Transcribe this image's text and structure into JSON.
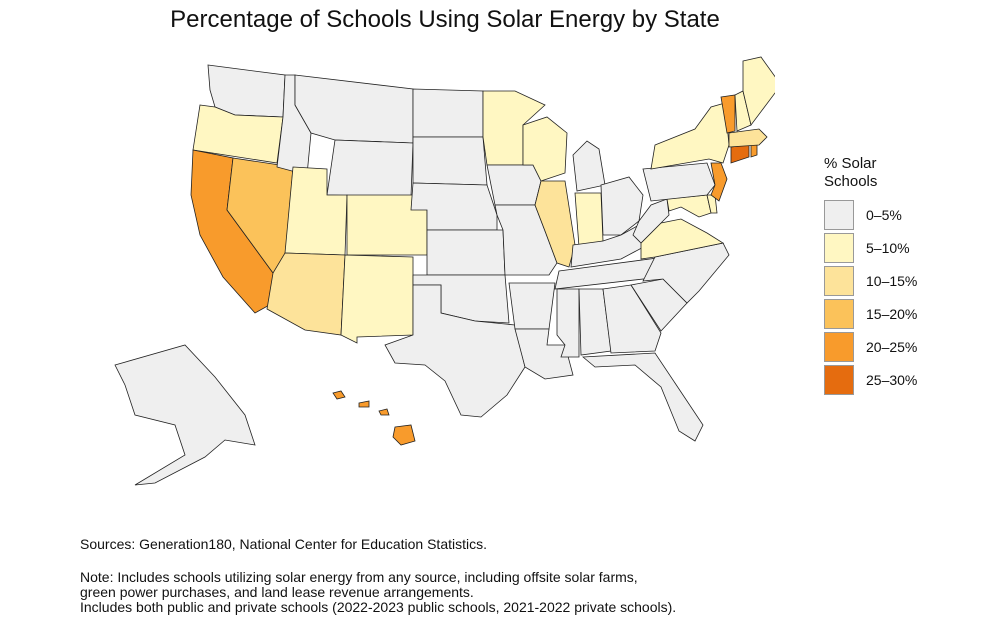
{
  "title": "Percentage of Schools Using Solar Energy by State",
  "legend": {
    "title_line1": "% Solar",
    "title_line2": "Schools",
    "bins": [
      {
        "label": "0–5%",
        "color": "#efefef"
      },
      {
        "label": "5–10%",
        "color": "#fff7c2"
      },
      {
        "label": "10–15%",
        "color": "#fde39a"
      },
      {
        "label": "15–20%",
        "color": "#fbc25a"
      },
      {
        "label": "20–25%",
        "color": "#f89b2c"
      },
      {
        "label": "25–30%",
        "color": "#e56c0f"
      }
    ]
  },
  "chart_data": {
    "type": "choropleth",
    "region": "United States",
    "value_unit": "% of schools using solar energy (binned)",
    "states": [
      {
        "state": "WA",
        "bin": "0–5%"
      },
      {
        "state": "OR",
        "bin": "5–10%"
      },
      {
        "state": "CA",
        "bin": "20–25%"
      },
      {
        "state": "NV",
        "bin": "15–20%"
      },
      {
        "state": "ID",
        "bin": "0–5%"
      },
      {
        "state": "MT",
        "bin": "0–5%"
      },
      {
        "state": "WY",
        "bin": "0–5%"
      },
      {
        "state": "UT",
        "bin": "5–10%"
      },
      {
        "state": "AZ",
        "bin": "10–15%"
      },
      {
        "state": "CO",
        "bin": "5–10%"
      },
      {
        "state": "NM",
        "bin": "5–10%"
      },
      {
        "state": "ND",
        "bin": "0–5%"
      },
      {
        "state": "SD",
        "bin": "0–5%"
      },
      {
        "state": "NE",
        "bin": "0–5%"
      },
      {
        "state": "KS",
        "bin": "0–5%"
      },
      {
        "state": "OK",
        "bin": "0–5%"
      },
      {
        "state": "TX",
        "bin": "0–5%"
      },
      {
        "state": "MN",
        "bin": "5–10%"
      },
      {
        "state": "IA",
        "bin": "0–5%"
      },
      {
        "state": "MO",
        "bin": "0–5%"
      },
      {
        "state": "AR",
        "bin": "0–5%"
      },
      {
        "state": "LA",
        "bin": "0–5%"
      },
      {
        "state": "WI",
        "bin": "5–10%"
      },
      {
        "state": "IL",
        "bin": "10–15%"
      },
      {
        "state": "MI",
        "bin": "0–5%"
      },
      {
        "state": "IN",
        "bin": "5–10%"
      },
      {
        "state": "OH",
        "bin": "0–5%"
      },
      {
        "state": "KY",
        "bin": "0–5%"
      },
      {
        "state": "TN",
        "bin": "0–5%"
      },
      {
        "state": "MS",
        "bin": "0–5%"
      },
      {
        "state": "AL",
        "bin": "0–5%"
      },
      {
        "state": "GA",
        "bin": "0–5%"
      },
      {
        "state": "FL",
        "bin": "0–5%"
      },
      {
        "state": "SC",
        "bin": "0–5%"
      },
      {
        "state": "NC",
        "bin": "0–5%"
      },
      {
        "state": "VA",
        "bin": "5–10%"
      },
      {
        "state": "WV",
        "bin": "0–5%"
      },
      {
        "state": "MD",
        "bin": "5–10%"
      },
      {
        "state": "DE",
        "bin": "5–10%"
      },
      {
        "state": "PA",
        "bin": "0–5%"
      },
      {
        "state": "NJ",
        "bin": "20–25%"
      },
      {
        "state": "NY",
        "bin": "5–10%"
      },
      {
        "state": "CT",
        "bin": "25–30%"
      },
      {
        "state": "RI",
        "bin": "20–25%"
      },
      {
        "state": "MA",
        "bin": "10–15%"
      },
      {
        "state": "VT",
        "bin": "20–25%"
      },
      {
        "state": "NH",
        "bin": "5–10%"
      },
      {
        "state": "ME",
        "bin": "5–10%"
      },
      {
        "state": "AK",
        "bin": "0–5%"
      },
      {
        "state": "HI",
        "bin": "20–25%"
      }
    ]
  },
  "sources": "Sources: Generation180, National Center for Education Statistics.",
  "note_lines": [
    "Note: Includes schools utilizing solar energy from any source, including offsite solar farms,",
    "green power purchases, and land lease revenue arrangements.",
    "Includes both public and private schools (2022-2023 public schools, 2021-2022 private schools)."
  ]
}
